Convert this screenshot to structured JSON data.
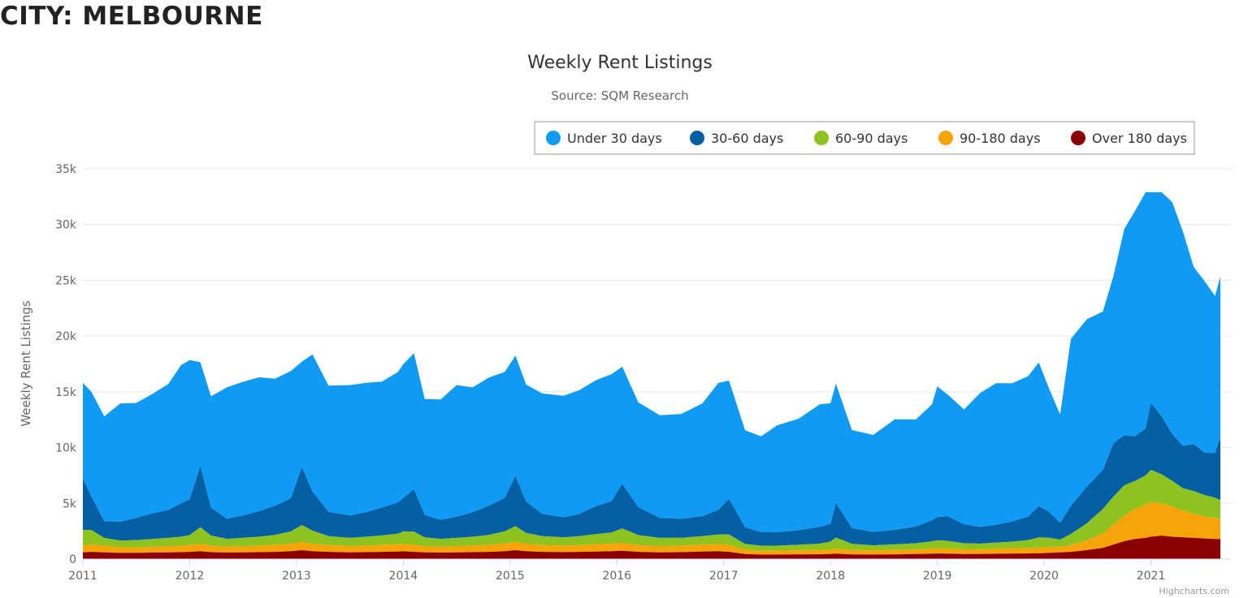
{
  "heading": "CITY: MELBOURNE",
  "credits": "Highcharts.com",
  "chart_data": {
    "type": "area",
    "stacked": true,
    "title": "Weekly Rent Listings",
    "subtitle": "Source: SQM Research",
    "ylabel": "Weekly Rent Listings",
    "xlabel": "",
    "xlim": [
      2011.0,
      2021.65
    ],
    "ylim": [
      0,
      35000
    ],
    "x_ticks": [
      "2011",
      "2012",
      "2013",
      "2014",
      "2015",
      "2016",
      "2017",
      "2018",
      "2019",
      "2020",
      "2021"
    ],
    "y_ticks": [
      "0",
      "5k",
      "10k",
      "15k",
      "20k",
      "25k",
      "30k",
      "35k"
    ],
    "grid": true,
    "legend_position": "top-right",
    "x": [
      2011.0,
      2011.08,
      2011.2,
      2011.35,
      2011.5,
      2011.65,
      2011.8,
      2011.92,
      2012.0,
      2012.1,
      2012.2,
      2012.35,
      2012.5,
      2012.65,
      2012.8,
      2012.95,
      2013.05,
      2013.15,
      2013.3,
      2013.5,
      2013.65,
      2013.8,
      2013.95,
      2014.0,
      2014.1,
      2014.2,
      2014.35,
      2014.5,
      2014.65,
      2014.8,
      2014.95,
      2015.05,
      2015.15,
      2015.3,
      2015.5,
      2015.65,
      2015.8,
      2015.95,
      2016.05,
      2016.2,
      2016.4,
      2016.6,
      2016.8,
      2016.95,
      2017.05,
      2017.2,
      2017.35,
      2017.5,
      2017.7,
      2017.9,
      2018.0,
      2018.05,
      2018.2,
      2018.4,
      2018.6,
      2018.8,
      2018.95,
      2019.0,
      2019.1,
      2019.25,
      2019.4,
      2019.55,
      2019.7,
      2019.85,
      2019.95,
      2020.05,
      2020.15,
      2020.25,
      2020.4,
      2020.55,
      2020.65,
      2020.75,
      2020.85,
      2020.95,
      2021.0,
      2021.1,
      2021.2,
      2021.3,
      2021.4,
      2021.5,
      2021.6,
      2021.65
    ],
    "series": [
      {
        "name": "Over 180 days",
        "color": "#8b0000",
        "values": [
          600,
          650,
          600,
          550,
          550,
          580,
          600,
          620,
          650,
          700,
          620,
          580,
          600,
          620,
          650,
          700,
          800,
          700,
          650,
          600,
          620,
          650,
          680,
          700,
          650,
          600,
          580,
          600,
          620,
          650,
          700,
          800,
          700,
          650,
          620,
          650,
          680,
          700,
          750,
          650,
          600,
          620,
          680,
          700,
          650,
          450,
          400,
          400,
          420,
          430,
          450,
          480,
          420,
          400,
          420,
          450,
          480,
          500,
          480,
          450,
          450,
          470,
          490,
          500,
          520,
          550,
          600,
          650,
          800,
          1000,
          1300,
          1600,
          1800,
          1900,
          2000,
          2100,
          2000,
          1950,
          1900,
          1850,
          1800,
          1800
        ]
      },
      {
        "name": "90-180 days",
        "color": "#f7a30a",
        "values": [
          600,
          650,
          600,
          500,
          500,
          520,
          550,
          580,
          600,
          650,
          580,
          530,
          550,
          580,
          620,
          680,
          750,
          650,
          600,
          550,
          580,
          620,
          650,
          680,
          600,
          550,
          530,
          550,
          580,
          620,
          680,
          750,
          650,
          600,
          580,
          600,
          650,
          680,
          700,
          600,
          550,
          580,
          620,
          650,
          600,
          400,
          350,
          350,
          380,
          400,
          420,
          450,
          400,
          380,
          400,
          420,
          450,
          480,
          450,
          420,
          430,
          450,
          470,
          500,
          520,
          550,
          500,
          600,
          900,
          1300,
          1800,
          2300,
          2700,
          3000,
          3100,
          2900,
          2700,
          2400,
          2200,
          2000,
          1900,
          1800
        ]
      },
      {
        "name": "60-90 days",
        "color": "#8dc21f",
        "values": [
          1400,
          1300,
          700,
          600,
          650,
          700,
          750,
          800,
          900,
          1500,
          900,
          700,
          750,
          800,
          900,
          1100,
          1500,
          1200,
          800,
          750,
          800,
          850,
          950,
          1100,
          1200,
          800,
          700,
          750,
          800,
          900,
          1100,
          1400,
          1000,
          800,
          750,
          800,
          900,
          1000,
          1300,
          900,
          750,
          700,
          750,
          850,
          950,
          500,
          450,
          450,
          480,
          550,
          700,
          1000,
          550,
          450,
          500,
          550,
          650,
          700,
          700,
          550,
          500,
          550,
          600,
          700,
          900,
          800,
          650,
          1000,
          1500,
          2200,
          2500,
          2700,
          2500,
          2600,
          2900,
          2600,
          2300,
          2000,
          2000,
          1900,
          1800,
          1700
        ]
      },
      {
        "name": "30-60 days",
        "color": "#075fa3",
        "values": [
          4600,
          3000,
          1500,
          1700,
          2000,
          2300,
          2500,
          3000,
          3200,
          5500,
          2500,
          1800,
          2000,
          2300,
          2600,
          3000,
          5200,
          3500,
          2200,
          2000,
          2200,
          2500,
          2800,
          3000,
          3800,
          2000,
          1700,
          1900,
          2200,
          2600,
          3000,
          4500,
          2800,
          2000,
          1800,
          2000,
          2500,
          2800,
          4000,
          2500,
          1800,
          1700,
          1800,
          2200,
          3200,
          1500,
          1200,
          1200,
          1300,
          1500,
          1600,
          3100,
          1400,
          1200,
          1300,
          1500,
          1900,
          2100,
          2200,
          1700,
          1500,
          1600,
          1800,
          2100,
          2800,
          2300,
          1500,
          2500,
          3300,
          3500,
          4800,
          4500,
          4000,
          4200,
          6000,
          5200,
          4200,
          3800,
          4200,
          3800,
          4000,
          5600
        ]
      },
      {
        "name": "Under 30 days",
        "color": "#0f9af5",
        "values": [
          8600,
          9400,
          9400,
          10600,
          10300,
          10700,
          11300,
          12400,
          12500,
          9300,
          10000,
          11800,
          12000,
          12000,
          11400,
          11400,
          9450,
          12300,
          11300,
          11700,
          11600,
          11300,
          11700,
          12000,
          12200,
          10400,
          10800,
          11800,
          11200,
          11500,
          11300,
          10800,
          10500,
          10800,
          10900,
          11100,
          11300,
          11400,
          10500,
          9400,
          9200,
          9400,
          10100,
          11400,
          10600,
          8700,
          8600,
          9600,
          10000,
          11000,
          10800,
          10700,
          8800,
          8700,
          9900,
          9600,
          10400,
          11700,
          10900,
          10300,
          12000,
          12700,
          12400,
          12600,
          12900,
          11000,
          9700,
          15000,
          15000,
          14200,
          15000,
          18500,
          20200,
          21200,
          18900,
          20100,
          20800,
          19200,
          15900,
          15400,
          14100,
          14400
        ]
      }
    ]
  }
}
